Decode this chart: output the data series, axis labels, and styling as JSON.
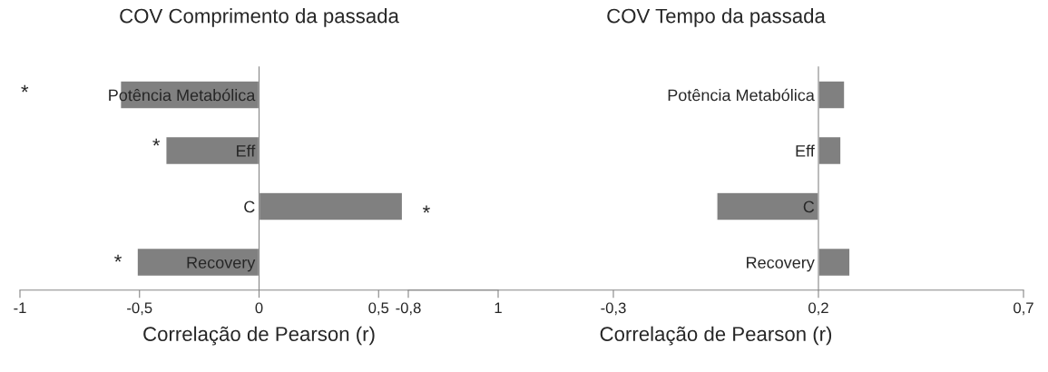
{
  "chart_data": [
    {
      "type": "bar",
      "orientation": "horizontal",
      "title": "COV Comprimento da passada",
      "xlabel": "Correlação de Pearson (r)",
      "categories": [
        "Potência Metabólica",
        "Eff",
        "C",
        "Recovery"
      ],
      "values": [
        -0.58,
        -0.39,
        0.6,
        -0.51
      ],
      "color": "#808080",
      "xlim": [
        -1,
        1
      ],
      "xticks": [
        -1,
        {
          "value": -0.5,
          "label": "-0,5"
        },
        0,
        {
          "value": 0.5,
          "label": "0,5"
        },
        1
      ],
      "annotations": [
        "*",
        "*",
        "*",
        "*"
      ],
      "grid": false,
      "legend": false
    },
    {
      "type": "bar",
      "orientation": "horizontal",
      "title": "COV Tempo da passada",
      "xlabel": "Correlação de Pearson (r)",
      "categories": [
        "Potência Metabólica",
        "Eff",
        "C",
        "Recovery"
      ],
      "base": [
        0.2,
        0.2,
        0.2,
        0.2
      ],
      "values": [
        0.064,
        0.055,
        -0.248,
        0.077
      ],
      "color": "#808080",
      "xlim": [
        -0.8,
        0.7
      ],
      "xticks": [
        {
          "value": -0.8,
          "label": "-0,8"
        },
        {
          "value": -0.3,
          "label": "-0,3"
        },
        {
          "value": 0.2,
          "label": "0,2"
        },
        {
          "value": 0.7,
          "label": "0,7"
        }
      ],
      "grid": false,
      "legend": false
    }
  ]
}
